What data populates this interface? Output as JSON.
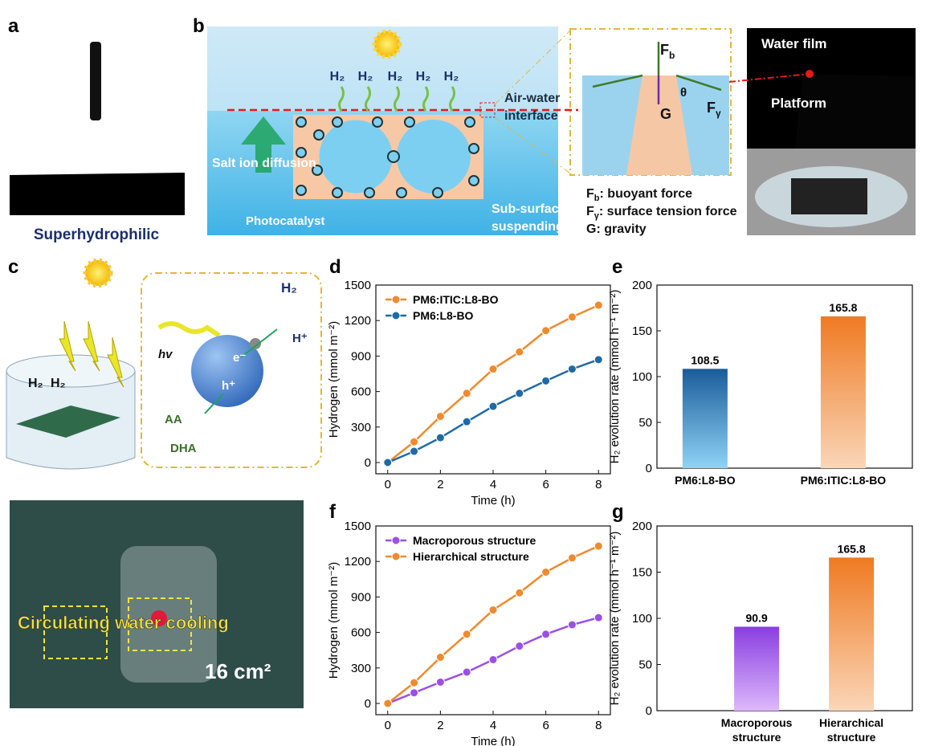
{
  "panels": {
    "a": {
      "letter": "a",
      "caption": "Superhydrophilic"
    },
    "b": {
      "letter": "b",
      "h2_labels": [
        "H₂",
        "H₂",
        "H₂",
        "H₂",
        "H₂"
      ],
      "interface": [
        "Air-water",
        "interface"
      ],
      "salt": "Salt ion diffusion",
      "photocatalyst": "Photocatalyst",
      "suspending": [
        "Sub-surface",
        "suspending"
      ],
      "fb": {
        "symbol": "F",
        "sub": "b"
      },
      "theta": "θ",
      "g": "G",
      "fy": {
        "symbol": "F",
        "sub": "γ"
      },
      "legend": [
        {
          "symbol": "F",
          "sub": "b",
          "text": ": buoyant force"
        },
        {
          "symbol": "F",
          "sub": "γ",
          "text": ": surface tension force"
        },
        {
          "symbol": "G",
          "sub": "",
          "text": ": gravity"
        }
      ],
      "water_film": "Water film",
      "platform": "Platform"
    },
    "c": {
      "letter": "c",
      "hv": "hv",
      "electron": "e⁻",
      "hole": "h⁺",
      "h2": "H₂",
      "hplus": "H⁺",
      "aa": "AA",
      "dha": "DHA",
      "beaker_h2": [
        "H₂",
        "H₂"
      ],
      "cooling": "Circulating water cooling",
      "area": "16 cm²"
    },
    "letters": [
      "d",
      "e",
      "f",
      "g"
    ]
  },
  "chart_data": [
    {
      "type": "line",
      "x": [
        0,
        1,
        2,
        3,
        4,
        5,
        6,
        7,
        8
      ],
      "xlabel": "Time (h)",
      "ylabel": "Hydrogen (mmol m⁻²)",
      "xlim": [
        -0.45,
        8.45
      ],
      "xticks": [
        0,
        2,
        4,
        6,
        8
      ],
      "ylim": [
        -95,
        1500
      ],
      "yticks": [
        0,
        300,
        600,
        900,
        1200,
        1500
      ],
      "legend": "upper left",
      "series": [
        {
          "name": "PM6:ITIC:L8-BO",
          "color": "#f08a2c",
          "values": [
            0,
            175,
            390,
            585,
            790,
            935,
            1115,
            1230,
            1330
          ]
        },
        {
          "name": "PM6:L8-BO",
          "color": "#1f6aa5",
          "values": [
            0,
            95,
            210,
            345,
            475,
            585,
            690,
            790,
            870
          ]
        }
      ]
    },
    {
      "type": "bar",
      "categories": [
        "PM6:L8-BO",
        "PM6:ITIC:L8-BO"
      ],
      "values": [
        108.5,
        165.8
      ],
      "ylabel": "H₂ evolution rate (mmol h⁻¹ m⁻²)",
      "ylim": [
        0,
        200
      ],
      "yticks": [
        0,
        50,
        100,
        150,
        200
      ],
      "colors": [
        [
          "#1a5c9a",
          "#8fd3f6"
        ],
        [
          "#ef7a22",
          "#fad6b8"
        ]
      ]
    },
    {
      "type": "line",
      "x": [
        0,
        1,
        2,
        3,
        4,
        5,
        6,
        7,
        8
      ],
      "xlabel": "Time (h)",
      "ylabel": "Hydrogen (mmol m⁻²)",
      "xlim": [
        -0.45,
        8.45
      ],
      "xticks": [
        0,
        2,
        4,
        6,
        8
      ],
      "ylim": [
        -95,
        1500
      ],
      "yticks": [
        0,
        300,
        600,
        900,
        1200,
        1500
      ],
      "legend": "upper left",
      "series": [
        {
          "name": "Macroporous structure",
          "color": "#9b4fe6",
          "values": [
            0,
            90,
            180,
            265,
            370,
            485,
            585,
            665,
            725
          ]
        },
        {
          "name": "Hierarchical structure",
          "color": "#f08a2c",
          "values": [
            0,
            175,
            390,
            585,
            790,
            935,
            1110,
            1230,
            1330
          ]
        }
      ]
    },
    {
      "type": "bar",
      "categories": [
        "Macroporous structure",
        "Hierarchical structure"
      ],
      "values": [
        90.9,
        165.8
      ],
      "ylabel": "H₂ evolution rate (mmol h⁻¹ m⁻²)",
      "ylim": [
        0,
        200
      ],
      "yticks": [
        0,
        50,
        100,
        150,
        200
      ],
      "colors": [
        [
          "#8a3ee0",
          "#dcb8fb"
        ],
        [
          "#ef7a22",
          "#fad6b8"
        ]
      ]
    }
  ]
}
